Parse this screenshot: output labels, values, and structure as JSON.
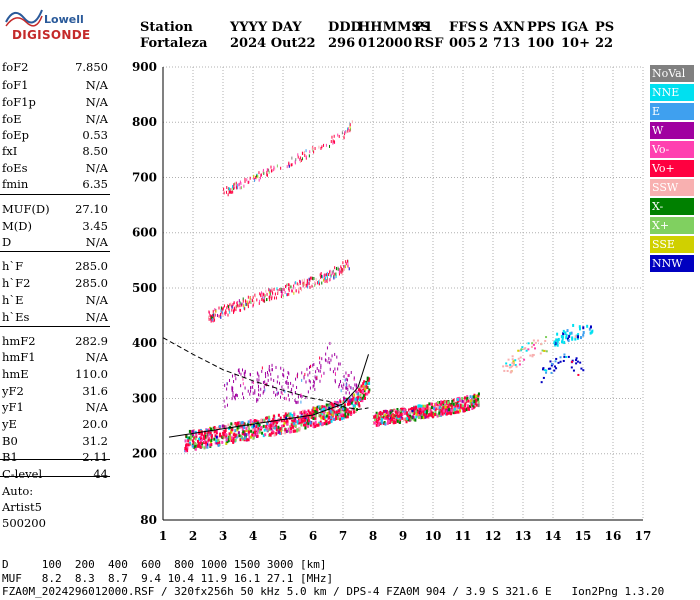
{
  "logo": {
    "line1": "Lowell",
    "line2": "DIGISONDE"
  },
  "header": {
    "labels": [
      "Station",
      "YYYY DAY",
      "DDD",
      "HHMMSS",
      "P1",
      "FFS",
      "S",
      "AXN",
      "PPS",
      "IGA",
      "PS"
    ],
    "values": [
      "Fortaleza",
      "2024 Out22",
      "296",
      "012000",
      "RSF",
      "005",
      "2",
      "713",
      "100",
      "10+",
      "22"
    ]
  },
  "params": [
    {
      "name": "foF2",
      "value": "7.850"
    },
    {
      "name": "foF1",
      "value": "N/A"
    },
    {
      "name": "foF1p",
      "value": "N/A"
    },
    {
      "name": "foE",
      "value": "N/A"
    },
    {
      "name": "foEp",
      "value": "0.53"
    },
    {
      "name": "fxI",
      "value": "8.50"
    },
    {
      "name": "foEs",
      "value": "N/A"
    },
    {
      "name": "fmin",
      "value": "6.35"
    },
    {
      "name": "MUF(D)",
      "value": "27.10"
    },
    {
      "name": "M(D)",
      "value": "3.45"
    },
    {
      "name": "D",
      "value": "N/A"
    },
    {
      "name": "h`F",
      "value": "285.0"
    },
    {
      "name": "h`F2",
      "value": "285.0"
    },
    {
      "name": "h`E",
      "value": "N/A"
    },
    {
      "name": "h`Es",
      "value": "N/A"
    },
    {
      "name": "hmF2",
      "value": "282.9"
    },
    {
      "name": "hmF1",
      "value": "N/A"
    },
    {
      "name": "hmE",
      "value": "110.0"
    },
    {
      "name": "yF2",
      "value": "31.6"
    },
    {
      "name": "yF1",
      "value": "N/A"
    },
    {
      "name": "yE",
      "value": "20.0"
    },
    {
      "name": "B0",
      "value": "31.2"
    },
    {
      "name": "B1",
      "value": "2.11"
    },
    {
      "name": "C-level",
      "value": "44"
    }
  ],
  "auto": [
    "Auto:",
    "Artist5",
    "500200"
  ],
  "legend": [
    {
      "label": "NoVal",
      "color": "#808080"
    },
    {
      "label": "NNE",
      "color": "#00e0f0"
    },
    {
      "label": "E",
      "color": "#3fa0ef"
    },
    {
      "label": "W",
      "color": "#a000a0"
    },
    {
      "label": "Vo-",
      "color": "#ff40b0"
    },
    {
      "label": "Vo+",
      "color": "#ff0040"
    },
    {
      "label": "SSW",
      "color": "#f8b0b0"
    },
    {
      "label": "X-",
      "color": "#008000"
    },
    {
      "label": "X+",
      "color": "#80d060"
    },
    {
      "label": "SSE",
      "color": "#d0d000"
    },
    {
      "label": "NNW",
      "color": "#0000c0"
    }
  ],
  "footer": {
    "d_row": "D     100  200  400  600  800 1000 1500 3000 [km]",
    "muf_row": "MUF   8.2  8.3  8.7  9.4 10.4 11.9 16.1 27.1 [MHz]",
    "info": "FZA0M_2024296012000.RSF / 320fx256h 50 kHz 5.0 km / DPS-4 FZA0M 904 / 3.9 S 321.6 E   Ion2Png 1.3.20"
  },
  "chart_data": {
    "type": "scatter",
    "xlim": [
      1,
      17
    ],
    "ylim": [
      80,
      900
    ],
    "xticks": [
      1,
      2,
      3,
      4,
      5,
      6,
      7,
      8,
      9,
      10,
      11,
      12,
      13,
      14,
      15,
      16,
      17
    ],
    "yticks": [
      80,
      200,
      300,
      400,
      500,
      600,
      700,
      800,
      900
    ],
    "grid": true,
    "traces": [
      {
        "name": "F2 trace o",
        "x": [
          1.7,
          2.5,
          3.5,
          4.5,
          5.5,
          6.5,
          7.3,
          7.85
        ],
        "y": [
          225,
          232,
          242,
          252,
          262,
          275,
          290,
          330
        ]
      },
      {
        "name": "F2 trace x",
        "x": [
          8.0,
          9.0,
          10.0,
          11.0,
          11.5
        ],
        "y": [
          265,
          272,
          282,
          292,
          300
        ]
      },
      {
        "name": "2F",
        "x": [
          2.5,
          3.5,
          4.5,
          5.5,
          6.5,
          7.2
        ],
        "y": [
          450,
          470,
          490,
          505,
          525,
          545
        ]
      },
      {
        "name": "3F",
        "x": [
          3.0,
          4.0,
          5.0,
          6.0,
          7.0,
          7.3
        ],
        "y": [
          675,
          700,
          725,
          750,
          780,
          800
        ]
      },
      {
        "name": "W band",
        "x": [
          3.0,
          3.5,
          4.0,
          4.5,
          5.0,
          5.5,
          6.0,
          6.5,
          7.0,
          7.5
        ],
        "y": [
          300,
          330,
          320,
          340,
          330,
          320,
          340,
          380,
          330,
          320
        ]
      },
      {
        "name": "NNW cluster",
        "x": [
          13.5,
          14.0,
          14.5,
          15.0
        ],
        "y": [
          340,
          360,
          375,
          345
        ]
      },
      {
        "name": "NNE cluster",
        "x": [
          14.0,
          14.5,
          15.0,
          15.3
        ],
        "y": [
          410,
          420,
          430,
          420
        ]
      },
      {
        "name": "SSW cluster",
        "x": [
          12.3,
          12.8,
          13.2,
          13.8
        ],
        "y": [
          350,
          375,
          390,
          400
        ]
      }
    ],
    "profile": {
      "x": [
        1.0,
        2.0,
        3.0,
        4.0,
        5.0,
        6.0,
        6.5,
        7.0,
        7.5,
        7.85
      ],
      "y": [
        410,
        380,
        352,
        332,
        315,
        300,
        295,
        285,
        280,
        283
      ]
    },
    "muf_curve": {
      "x": [
        1.2,
        3.0,
        5.0,
        6.0,
        7.0,
        7.5,
        7.85
      ],
      "y": [
        230,
        245,
        262,
        270,
        290,
        320,
        380
      ]
    }
  }
}
